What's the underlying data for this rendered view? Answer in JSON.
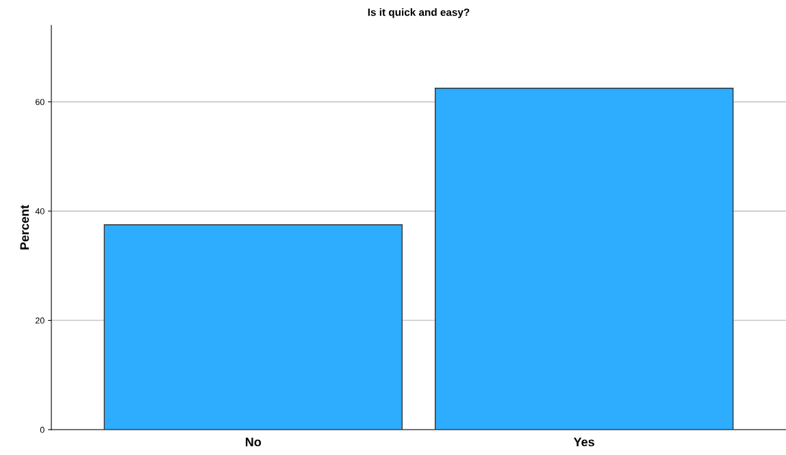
{
  "chart_data": {
    "type": "bar",
    "title": "Is it quick and easy?",
    "ylabel": "Percent",
    "categories": [
      "No",
      "Yes"
    ],
    "values": [
      37.5,
      62.5
    ],
    "color": "#2eacfe",
    "ylim": [
      0,
      74
    ],
    "yticks": [
      0,
      20,
      40,
      60
    ],
    "grid": "y"
  }
}
